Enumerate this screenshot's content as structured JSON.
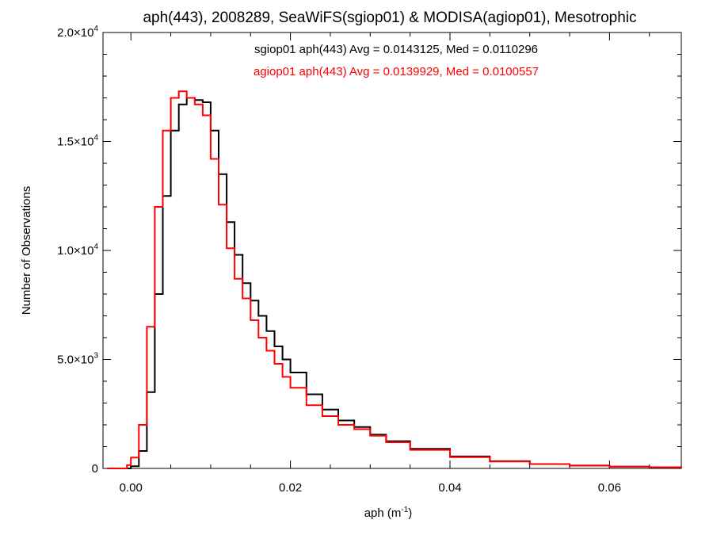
{
  "chart_data": {
    "type": "line",
    "title": "aph(443), 2008289, SeaWiFS(sgiop01) & MODISA(agiop01), Mesotrophic",
    "xlabel": "aph (m",
    "xlabel_exp": "-1",
    "xlabel_close": ")",
    "ylabel": "Number of Observations",
    "xlim": [
      -0.0035,
      0.069
    ],
    "ylim": [
      0,
      20000
    ],
    "x_ticks": [
      {
        "value": 0.0,
        "label": "0.00"
      },
      {
        "value": 0.02,
        "label": "0.02"
      },
      {
        "value": 0.04,
        "label": "0.04"
      },
      {
        "value": 0.06,
        "label": "0.06"
      }
    ],
    "y_ticks": [
      {
        "value": 0,
        "mant": "0",
        "exp": ""
      },
      {
        "value": 5000,
        "mant": "5.0×10",
        "exp": "3"
      },
      {
        "value": 10000,
        "mant": "1.0×10",
        "exp": "4"
      },
      {
        "value": 15000,
        "mant": "1.5×10",
        "exp": "4"
      },
      {
        "value": 20000,
        "mant": "2.0×10",
        "exp": "4"
      }
    ],
    "annotations": [
      {
        "text": "sgiop01 aph(443) Avg = 0.0143125, Med = 0.0110296",
        "color": "#000000"
      },
      {
        "text": "agiop01 aph(443) Avg = 0.0139929, Med = 0.0100557",
        "color": "#ff0000"
      }
    ],
    "series": [
      {
        "color": "#000000",
        "x": [
          -0.003,
          -0.001,
          0.0,
          0.001,
          0.002,
          0.003,
          0.004,
          0.005,
          0.006,
          0.007,
          0.008,
          0.009,
          0.01,
          0.011,
          0.012,
          0.013,
          0.014,
          0.015,
          0.016,
          0.017,
          0.018,
          0.019,
          0.02,
          0.022,
          0.024,
          0.026,
          0.028,
          0.03,
          0.032,
          0.035,
          0.04,
          0.045,
          0.05,
          0.055,
          0.06,
          0.065,
          0.069
        ],
        "y": [
          0,
          0,
          100,
          800,
          3500,
          8000,
          12500,
          15500,
          16700,
          17000,
          16900,
          16800,
          15500,
          13500,
          11300,
          9800,
          8500,
          7700,
          7000,
          6300,
          5600,
          5000,
          4400,
          3400,
          2700,
          2200,
          1900,
          1550,
          1250,
          900,
          550,
          330,
          200,
          130,
          80,
          50,
          30
        ]
      },
      {
        "color": "#ff0000",
        "x": [
          -0.003,
          -0.0015,
          -0.0005,
          0.0,
          0.001,
          0.002,
          0.003,
          0.004,
          0.005,
          0.006,
          0.007,
          0.008,
          0.009,
          0.01,
          0.011,
          0.012,
          0.013,
          0.014,
          0.015,
          0.016,
          0.017,
          0.018,
          0.019,
          0.02,
          0.022,
          0.024,
          0.026,
          0.028,
          0.03,
          0.032,
          0.035,
          0.04,
          0.045,
          0.05,
          0.055,
          0.06,
          0.065,
          0.069
        ],
        "y": [
          0,
          0,
          150,
          500,
          2000,
          6500,
          12000,
          15500,
          17000,
          17300,
          17000,
          16700,
          16200,
          14200,
          12100,
          10100,
          8700,
          7800,
          6800,
          6000,
          5400,
          4800,
          4200,
          3700,
          2900,
          2400,
          2000,
          1800,
          1500,
          1200,
          850,
          520,
          320,
          200,
          130,
          80,
          50,
          30
        ]
      }
    ]
  }
}
